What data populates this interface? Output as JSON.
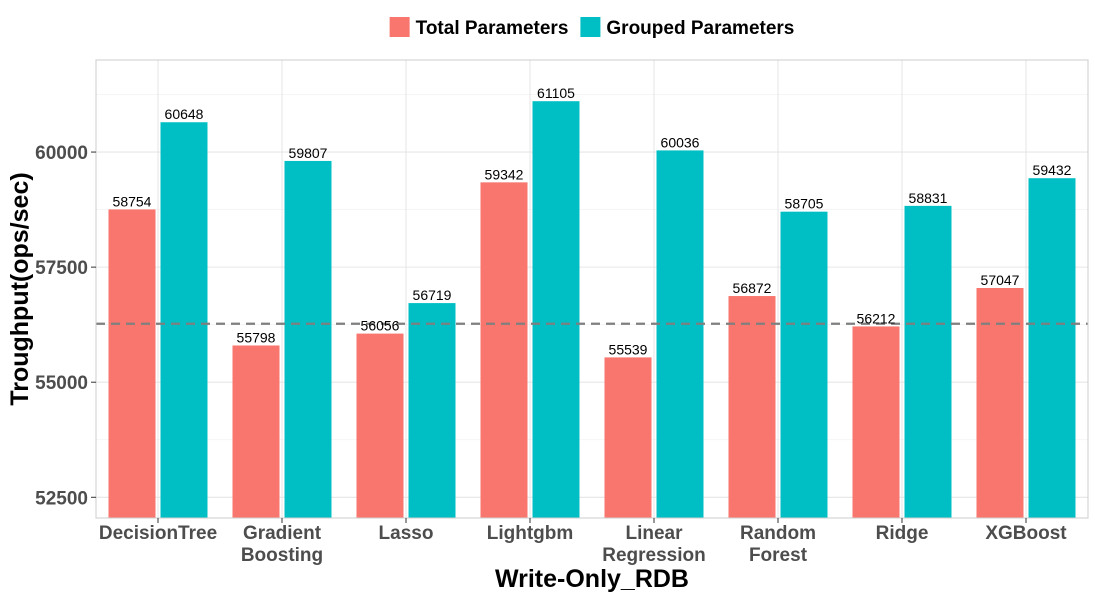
{
  "chart_data": {
    "type": "bar",
    "title": "",
    "xlabel": "Write-Only_RDB",
    "ylabel": "Troughput(ops/sec)",
    "categories": [
      "DecisionTree",
      "Gradient Boosting",
      "Lasso",
      "Lightgbm",
      "Linear Regression",
      "Random Forest",
      "Ridge",
      "XGBoost"
    ],
    "series": [
      {
        "name": "Total Parameters",
        "color": "#f8766d",
        "values": [
          58754,
          55798,
          56056,
          59342,
          55539,
          56872,
          56212,
          57047
        ]
      },
      {
        "name": "Grouped Parameters",
        "color": "#00bfc4",
        "values": [
          60648,
          59807,
          56719,
          61105,
          60036,
          58705,
          58831,
          59432
        ]
      }
    ],
    "ylim": [
      52050,
      62000
    ],
    "yticks": [
      52500,
      55000,
      57500,
      60000
    ],
    "reference_line": {
      "value": 56270,
      "style": "dashed",
      "color": "#7f7f7f"
    },
    "grid": true,
    "legend_position": "top"
  }
}
